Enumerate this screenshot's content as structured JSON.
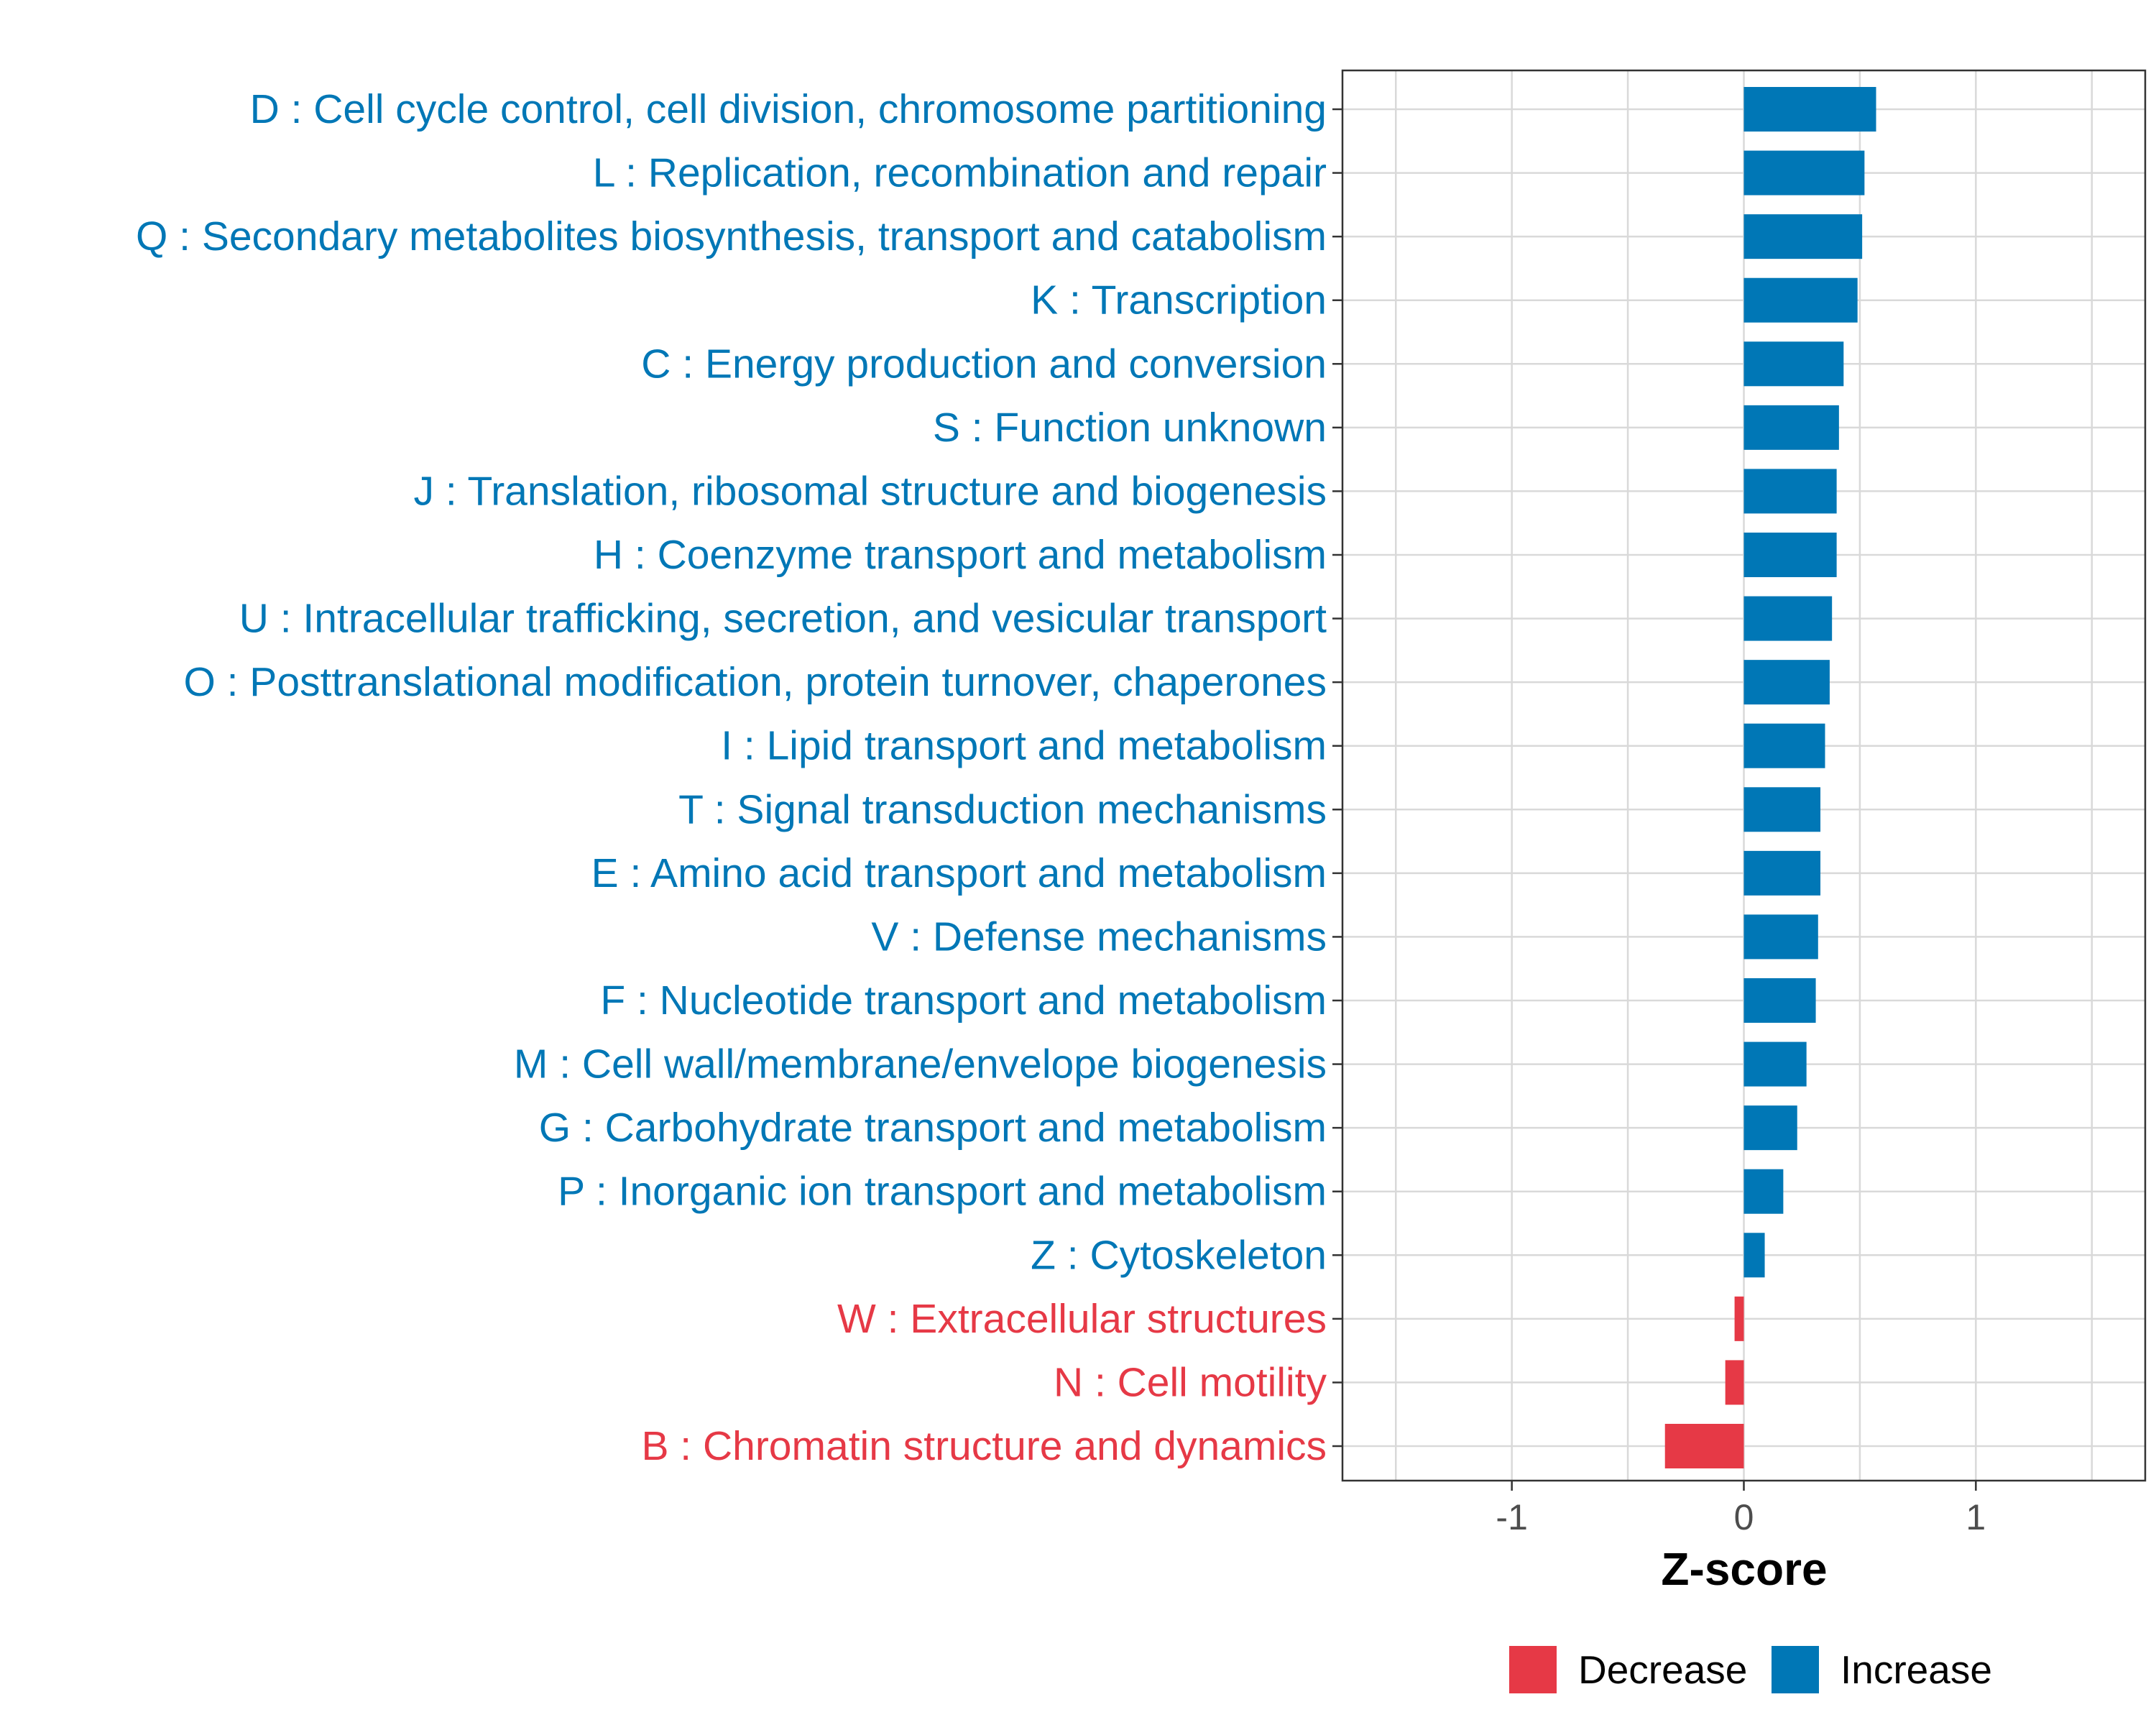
{
  "chart_data": {
    "type": "bar",
    "orientation": "horizontal",
    "categories": [
      "D : Cell cycle control, cell division, chromosome partitioning",
      "L : Replication, recombination and repair",
      "Q : Secondary metabolites biosynthesis, transport and catabolism",
      "K : Transcription",
      "C : Energy production and conversion",
      "S : Function unknown",
      "J : Translation, ribosomal structure and biogenesis",
      "H : Coenzyme transport and metabolism",
      "U : Intracellular trafficking, secretion, and vesicular transport",
      "O : Posttranslational modification, protein turnover, chaperones",
      "I : Lipid transport and metabolism",
      "T : Signal transduction mechanisms",
      "E : Amino acid transport and metabolism",
      "V : Defense mechanisms",
      "F : Nucleotide transport and metabolism",
      "M : Cell wall/membrane/envelope biogenesis",
      "G : Carbohydrate transport and metabolism",
      "P : Inorganic ion transport and metabolism",
      "Z : Cytoskeleton",
      "W : Extracellular structures",
      "N : Cell motility",
      "B : Chromatin structure and dynamics"
    ],
    "values": [
      0.57,
      0.52,
      0.51,
      0.49,
      0.43,
      0.41,
      0.4,
      0.4,
      0.38,
      0.37,
      0.35,
      0.33,
      0.33,
      0.32,
      0.31,
      0.27,
      0.23,
      0.17,
      0.09,
      -0.04,
      -0.08,
      -0.34
    ],
    "xlabel": "Z-score",
    "ylabel": "",
    "xlim": [
      -1.73,
      1.73
    ],
    "xticks": [
      -1,
      0,
      1
    ],
    "xtick_labels": [
      "-1",
      "0",
      "1"
    ],
    "grid": true,
    "legend": {
      "placement": "bottom",
      "items": [
        {
          "label": "Decrease",
          "color": "#E63946"
        },
        {
          "label": "Increase",
          "color": "#0077B6"
        }
      ]
    },
    "colors": {
      "increase": "#0077B6",
      "decrease": "#E63946"
    }
  }
}
